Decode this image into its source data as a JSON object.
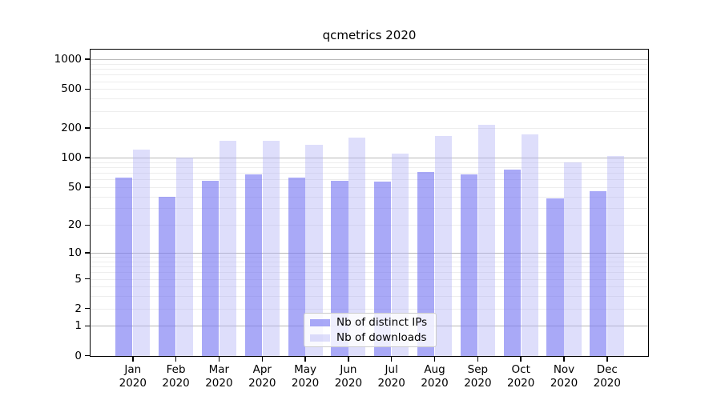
{
  "chart_data": {
    "type": "bar",
    "title": "qcmetrics 2020",
    "x": {
      "months": [
        "Jan",
        "Feb",
        "Mar",
        "Apr",
        "May",
        "Jun",
        "Jul",
        "Aug",
        "Sep",
        "Oct",
        "Nov",
        "Dec"
      ],
      "year_label": "2020"
    },
    "series": [
      {
        "name": "Nb of distinct IPs",
        "fill": "rgba(119,119,242,0.63)",
        "shown_hex": "#a9a9f5",
        "values": [
          62,
          40,
          58,
          67,
          63,
          58,
          57,
          71,
          67,
          75,
          38,
          45
        ]
      },
      {
        "name": "Nb of downloads",
        "fill": "rgba(176,176,246,0.42)",
        "shown_hex": "#dcdcfa",
        "values": [
          120,
          100,
          150,
          148,
          135,
          160,
          110,
          166,
          215,
          172,
          90,
          105
        ]
      }
    ],
    "y_axis": {
      "scale": "symlog",
      "tick_values": [
        1000,
        500,
        200,
        100,
        50,
        20,
        10,
        5,
        2,
        1,
        0
      ],
      "major_grid_values": [
        1,
        10,
        100,
        1000
      ],
      "minor_grid_values": [
        2,
        3,
        4,
        5,
        6,
        7,
        8,
        9,
        20,
        30,
        40,
        50,
        60,
        70,
        80,
        90,
        200,
        300,
        400,
        500,
        600,
        700,
        800,
        900
      ],
      "major_grid_color": "#b8b8b8",
      "minor_grid_color": "#ededed"
    },
    "legend": {
      "position": "lower-center",
      "entries": [
        "Nb of distinct IPs",
        "Nb of downloads"
      ],
      "background": "rgba(255,255,255,0.8)",
      "border_color": "#cccccc"
    }
  }
}
